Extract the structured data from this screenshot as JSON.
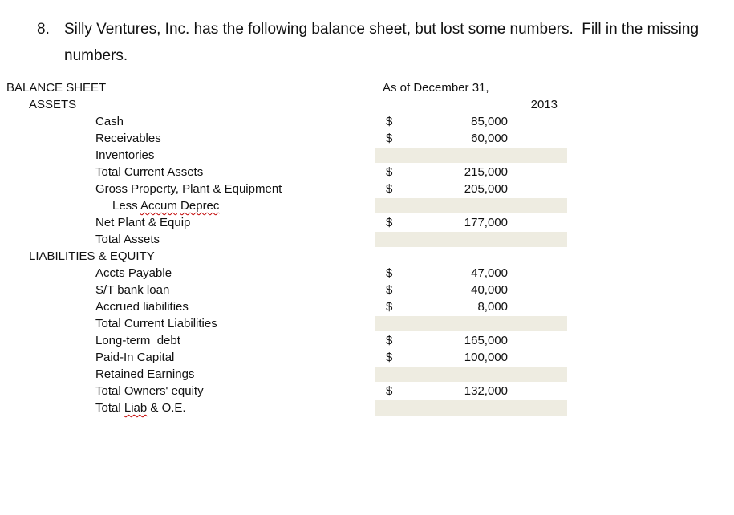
{
  "question": {
    "number": "8.",
    "text": "Silly Ventures, Inc. has the following balance sheet, but lost some numbers.  Fill in the missing numbers."
  },
  "sheet": {
    "title": "BALANCE SHEET",
    "date_header": "As of December 31,",
    "year": "2013",
    "assets_header": "ASSETS",
    "liabilities_header": "LIABILITIES & EQUITY"
  },
  "colors": {
    "missing_cell_fill": "#EEECE1",
    "spellcheck_underline": "#C00000"
  },
  "rows": [
    {
      "label": "Cash",
      "currency": "$",
      "value": "85,000",
      "missing": false
    },
    {
      "label": "Receivables",
      "currency": "$",
      "value": "60,000",
      "missing": false
    },
    {
      "label": "Inventories",
      "missing": true
    },
    {
      "label": "Total Current Assets",
      "currency": "$",
      "value": "215,000",
      "missing": false
    },
    {
      "label": "Gross Property, Plant & Equipment",
      "currency": "$",
      "value": "205,000",
      "missing": false
    },
    {
      "less_word": "Less",
      "accum_word": "Accum",
      "deprec_word": "Deprec",
      "missing": true
    },
    {
      "label": "Net Plant & Equip",
      "currency": "$",
      "value": "177,000",
      "missing": false
    },
    {
      "label": "Total Assets",
      "missing": true
    },
    {
      "label": "Accts Payable",
      "currency": "$",
      "value": "47,000",
      "missing": false
    },
    {
      "label": "S/T bank loan",
      "currency": "$",
      "value": "40,000",
      "missing": false
    },
    {
      "label": "Accrued liabilities",
      "currency": "$",
      "value": "8,000",
      "missing": false
    },
    {
      "label": "Total Current Liabilities",
      "missing": true
    },
    {
      "label": "Long-term  debt",
      "currency": "$",
      "value": "165,000",
      "missing": false
    },
    {
      "label": "Paid-In Capital",
      "currency": "$",
      "value": "100,000",
      "missing": false
    },
    {
      "label": "Retained Earnings",
      "missing": true
    },
    {
      "label": "Total Owners' equity",
      "currency": "$",
      "value": "132,000",
      "missing": false
    },
    {
      "total_word": "Total",
      "liab_word": "Liab",
      "oe_word": "& O.E.",
      "missing": true
    }
  ]
}
